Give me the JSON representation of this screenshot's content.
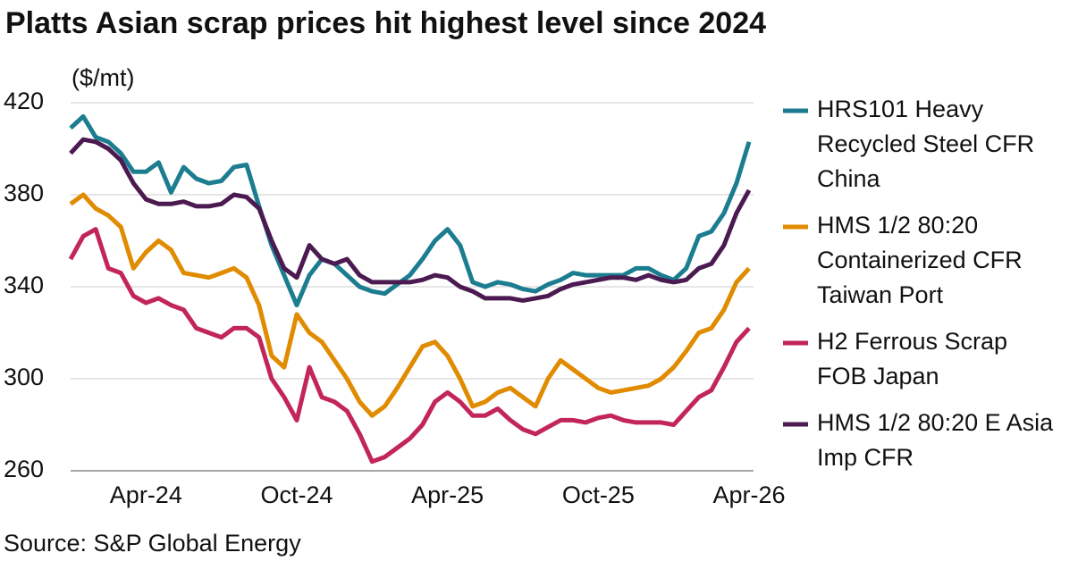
{
  "chart_data": {
    "type": "line",
    "title": "Platts Asian scrap prices hit highest level since 2024",
    "y_label": "($/mt)",
    "source": "Source: S&P Global Energy",
    "categories": [
      null,
      null,
      null,
      null,
      null,
      null,
      "Apr-24",
      null,
      null,
      null,
      null,
      null,
      null,
      null,
      null,
      null,
      null,
      null,
      "Oct-24",
      null,
      null,
      null,
      null,
      null,
      null,
      null,
      null,
      null,
      null,
      null,
      "Apr-25",
      null,
      null,
      null,
      null,
      null,
      null,
      null,
      null,
      null,
      null,
      null,
      "Oct-25",
      null,
      null,
      null,
      null,
      null,
      null,
      null,
      null,
      null,
      null,
      null,
      "Apr-26"
    ],
    "ylim": [
      260,
      420
    ],
    "yticks": [
      260,
      300,
      340,
      380,
      420
    ],
    "grid": true,
    "legend": "right",
    "series": [
      {
        "name": "HRS101 Heavy Recycled Steel CFR China",
        "color": "#1b7d8f",
        "values": [
          409,
          414,
          405,
          403,
          398,
          390,
          390,
          394,
          381,
          392,
          387,
          385,
          386,
          392,
          393,
          375,
          358,
          345,
          332,
          345,
          352,
          350,
          345,
          340,
          338,
          337,
          341,
          345,
          352,
          360,
          365,
          358,
          342,
          340,
          342,
          341,
          339,
          338,
          341,
          343,
          346,
          345,
          345,
          345,
          345,
          348,
          348,
          345,
          343,
          348,
          362,
          364,
          372,
          385,
          403
        ]
      },
      {
        "name": "HMS 1/2 80:20 Containerized CFR Taiwan Port",
        "color": "#e08b00",
        "values": [
          376,
          380,
          374,
          371,
          366,
          348,
          355,
          360,
          356,
          346,
          345,
          344,
          346,
          348,
          344,
          332,
          310,
          305,
          328,
          320,
          316,
          308,
          300,
          290,
          284,
          288,
          296,
          305,
          314,
          316,
          310,
          300,
          288,
          290,
          294,
          296,
          292,
          288,
          300,
          308,
          304,
          300,
          296,
          294,
          295,
          296,
          297,
          300,
          305,
          312,
          320,
          322,
          330,
          342,
          348
        ]
      },
      {
        "name": "H2 Ferrous Scrap FOB Japan",
        "color": "#c2255c",
        "values": [
          352,
          362,
          365,
          348,
          346,
          336,
          333,
          335,
          332,
          330,
          322,
          320,
          318,
          322,
          322,
          318,
          300,
          292,
          282,
          305,
          292,
          290,
          286,
          276,
          264,
          266,
          270,
          274,
          280,
          290,
          294,
          290,
          284,
          284,
          287,
          282,
          278,
          276,
          279,
          282,
          282,
          281,
          283,
          284,
          282,
          281,
          281,
          281,
          280,
          286,
          292,
          295,
          305,
          316,
          322
        ]
      },
      {
        "name": "HMS 1/2 80:20 E Asia Imp CFR",
        "color": "#4b1a50",
        "values": [
          398,
          404,
          403,
          400,
          395,
          385,
          378,
          376,
          376,
          377,
          375,
          375,
          376,
          380,
          379,
          374,
          360,
          348,
          344,
          358,
          352,
          350,
          352,
          345,
          342,
          342,
          342,
          342,
          343,
          345,
          344,
          340,
          338,
          335,
          335,
          335,
          334,
          335,
          336,
          339,
          341,
          342,
          343,
          344,
          344,
          343,
          345,
          343,
          342,
          343,
          348,
          350,
          358,
          372,
          382
        ]
      }
    ]
  }
}
